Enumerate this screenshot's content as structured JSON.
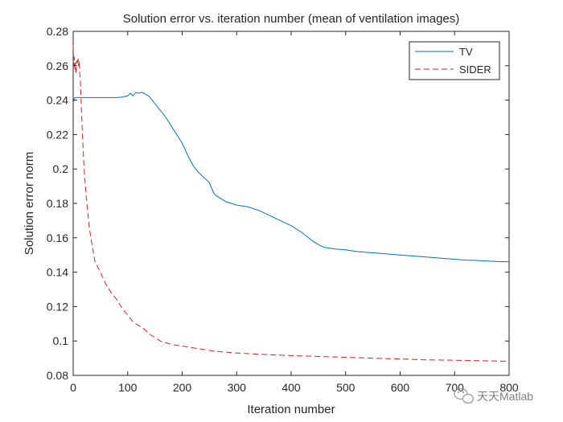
{
  "chart_data": {
    "type": "line",
    "title": "Solution error vs. iteration number (mean of ventilation images)",
    "xlabel": "Iteration number",
    "ylabel": "Solution error norm",
    "xlim": [
      0,
      800
    ],
    "ylim": [
      0.08,
      0.28
    ],
    "xticks": [
      0,
      100,
      200,
      300,
      400,
      500,
      600,
      700,
      800
    ],
    "yticks": [
      0.08,
      0.1,
      0.12,
      0.14,
      0.16,
      0.18,
      0.2,
      0.22,
      0.24,
      0.26,
      0.28
    ],
    "ytick_labels": [
      "0.08",
      "0.1",
      "0.12",
      "0.14",
      "0.16",
      "0.18",
      "0.2",
      "0.22",
      "0.24",
      "0.26",
      "0.28"
    ],
    "legend_position": "top-right",
    "grid": false,
    "series": [
      {
        "name": "TV",
        "color": "#0072bd",
        "style": "solid",
        "x": [
          0,
          1,
          2,
          5,
          10,
          20,
          40,
          60,
          80,
          90,
          100,
          105,
          110,
          115,
          120,
          125,
          130,
          140,
          150,
          160,
          170,
          180,
          190,
          200,
          210,
          220,
          230,
          240,
          250,
          255,
          260,
          270,
          280,
          290,
          300,
          320,
          340,
          360,
          380,
          400,
          420,
          440,
          450,
          460,
          480,
          500,
          520,
          540,
          560,
          580,
          600,
          620,
          640,
          660,
          680,
          700,
          720,
          740,
          760,
          780,
          800
        ],
        "values": [
          0.2385,
          0.2395,
          0.2412,
          0.2415,
          0.2415,
          0.2415,
          0.2415,
          0.2415,
          0.2415,
          0.2418,
          0.2425,
          0.244,
          0.2425,
          0.2445,
          0.244,
          0.2445,
          0.244,
          0.242,
          0.238,
          0.234,
          0.23,
          0.225,
          0.22,
          0.215,
          0.208,
          0.202,
          0.198,
          0.195,
          0.192,
          0.188,
          0.185,
          0.183,
          0.181,
          0.18,
          0.179,
          0.178,
          0.176,
          0.173,
          0.17,
          0.167,
          0.163,
          0.158,
          0.156,
          0.1545,
          0.1535,
          0.153,
          0.152,
          0.1515,
          0.151,
          0.1505,
          0.15,
          0.1495,
          0.149,
          0.1485,
          0.148,
          0.1475,
          0.147,
          0.1468,
          0.1465,
          0.1462,
          0.146
        ]
      },
      {
        "name": "SIDER",
        "color": "#d42020",
        "style": "dashed",
        "x": [
          0,
          1,
          2,
          3,
          4,
          5,
          6,
          7,
          8,
          9,
          10,
          11,
          12,
          13,
          14,
          15,
          17,
          20,
          25,
          30,
          35,
          40,
          50,
          60,
          70,
          80,
          90,
          100,
          110,
          120,
          130,
          140,
          150,
          160,
          170,
          180,
          190,
          200,
          220,
          240,
          260,
          280,
          300,
          330,
          360,
          400,
          450,
          500,
          550,
          600,
          650,
          700,
          750,
          800
        ],
        "values": [
          0.272,
          0.26,
          0.265,
          0.258,
          0.262,
          0.255,
          0.26,
          0.263,
          0.261,
          0.264,
          0.26,
          0.263,
          0.256,
          0.252,
          0.245,
          0.235,
          0.22,
          0.2,
          0.18,
          0.165,
          0.155,
          0.146,
          0.14,
          0.133,
          0.128,
          0.124,
          0.119,
          0.115,
          0.111,
          0.109,
          0.107,
          0.104,
          0.102,
          0.1,
          0.099,
          0.098,
          0.0975,
          0.097,
          0.096,
          0.095,
          0.094,
          0.0935,
          0.093,
          0.0925,
          0.092,
          0.0915,
          0.091,
          0.0905,
          0.09,
          0.0895,
          0.089,
          0.0888,
          0.0885,
          0.0882
        ]
      }
    ]
  },
  "watermark": {
    "text": "天天Matlab",
    "icon": "wechat-icon"
  }
}
